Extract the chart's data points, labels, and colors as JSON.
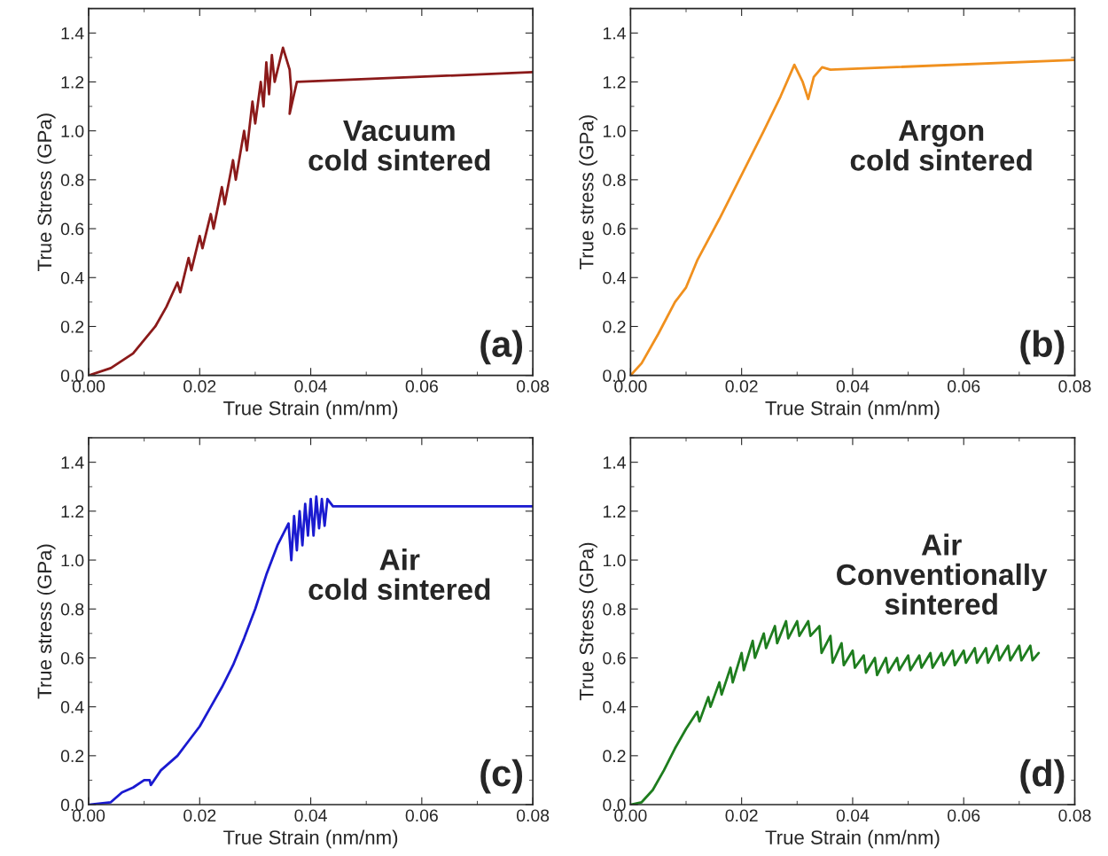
{
  "chart_data": [
    {
      "type": "line",
      "xlabel": "True Strain (nm/nm)",
      "ylabel": "True Stress (GPa)",
      "xlim": [
        0,
        0.08
      ],
      "ylim": [
        0,
        1.5
      ],
      "xticks": [
        {
          "value": 0,
          "label": "0.00"
        },
        {
          "value": 0.02,
          "label": "0.02"
        },
        {
          "value": 0.04,
          "label": "0.04"
        },
        {
          "value": 0.06,
          "label": "0.06"
        },
        {
          "value": 0.08,
          "label": "0.08"
        }
      ],
      "yticks": [
        {
          "value": 0,
          "label": "0.0"
        },
        {
          "value": 0.2,
          "label": "0.2"
        },
        {
          "value": 0.4,
          "label": "0.4"
        },
        {
          "value": 0.6,
          "label": "0.6"
        },
        {
          "value": 0.8,
          "label": "0.8"
        },
        {
          "value": 1.0,
          "label": "1.0"
        },
        {
          "value": 1.2,
          "label": "1.2"
        },
        {
          "value": 1.4,
          "label": "1.4"
        }
      ],
      "annotations": [
        "Vacuum\ncold sintered",
        "(a)"
      ],
      "series": [
        {
          "color": "#8b1a1a",
          "x": [
            0,
            0.004,
            0.008,
            0.012,
            0.014,
            0.016,
            0.0165,
            0.018,
            0.0185,
            0.02,
            0.0205,
            0.022,
            0.0225,
            0.024,
            0.0245,
            0.026,
            0.0265,
            0.028,
            0.0285,
            0.0295,
            0.03,
            0.031,
            0.0315,
            0.032,
            0.0325,
            0.033,
            0.0335,
            0.035,
            0.0362,
            0.0365,
            0.0362,
            0.0375,
            0.08
          ],
          "values": [
            0,
            0.03,
            0.09,
            0.2,
            0.28,
            0.38,
            0.34,
            0.48,
            0.43,
            0.57,
            0.52,
            0.66,
            0.6,
            0.77,
            0.7,
            0.88,
            0.8,
            1.0,
            0.92,
            1.12,
            1.03,
            1.2,
            1.1,
            1.28,
            1.15,
            1.31,
            1.2,
            1.34,
            1.25,
            1.16,
            1.07,
            1.2,
            1.24
          ]
        }
      ]
    },
    {
      "type": "line",
      "xlabel": "True Strain (nm/nm)",
      "ylabel": "True stress (GPa)",
      "xlim": [
        0,
        0.08
      ],
      "ylim": [
        0,
        1.5
      ],
      "xticks": [
        {
          "value": 0,
          "label": "0.00"
        },
        {
          "value": 0.02,
          "label": "0.02"
        },
        {
          "value": 0.04,
          "label": "0.04"
        },
        {
          "value": 0.06,
          "label": "0.06"
        },
        {
          "value": 0.08,
          "label": "0.08"
        }
      ],
      "yticks": [
        {
          "value": 0,
          "label": "0.0"
        },
        {
          "value": 0.2,
          "label": "0.2"
        },
        {
          "value": 0.4,
          "label": "0.4"
        },
        {
          "value": 0.6,
          "label": "0.6"
        },
        {
          "value": 0.8,
          "label": "0.8"
        },
        {
          "value": 1.0,
          "label": "1.0"
        },
        {
          "value": 1.2,
          "label": "1.2"
        },
        {
          "value": 1.4,
          "label": "1.4"
        }
      ],
      "annotations": [
        "Argon\ncold sintered",
        "(b)"
      ],
      "series": [
        {
          "color": "#f0901e",
          "x": [
            0,
            0.002,
            0.005,
            0.008,
            0.01,
            0.012,
            0.016,
            0.02,
            0.024,
            0.027,
            0.0295,
            0.031,
            0.032,
            0.033,
            0.0345,
            0.036,
            0.08
          ],
          "values": [
            0,
            0.05,
            0.17,
            0.3,
            0.36,
            0.47,
            0.64,
            0.82,
            1.0,
            1.14,
            1.27,
            1.2,
            1.13,
            1.22,
            1.26,
            1.25,
            1.29
          ]
        }
      ]
    },
    {
      "type": "line",
      "xlabel": "True Strain (nm/nm)",
      "ylabel": "True stress (GPa)",
      "xlim": [
        0,
        0.08
      ],
      "ylim": [
        0,
        1.5
      ],
      "xticks": [
        {
          "value": 0,
          "label": "0.00"
        },
        {
          "value": 0.02,
          "label": "0.02"
        },
        {
          "value": 0.04,
          "label": "0.04"
        },
        {
          "value": 0.06,
          "label": "0.06"
        },
        {
          "value": 0.08,
          "label": "0.08"
        }
      ],
      "yticks": [
        {
          "value": 0,
          "label": "0.0"
        },
        {
          "value": 0.2,
          "label": "0.2"
        },
        {
          "value": 0.4,
          "label": "0.4"
        },
        {
          "value": 0.6,
          "label": "0.6"
        },
        {
          "value": 0.8,
          "label": "0.8"
        },
        {
          "value": 1.0,
          "label": "1.0"
        },
        {
          "value": 1.2,
          "label": "1.2"
        },
        {
          "value": 1.4,
          "label": "1.4"
        }
      ],
      "annotations": [
        "Air\ncold sintered",
        "(c)"
      ],
      "series": [
        {
          "color": "#1a1ad0",
          "x": [
            0,
            0.004,
            0.006,
            0.008,
            0.01,
            0.011,
            0.0112,
            0.013,
            0.016,
            0.018,
            0.02,
            0.022,
            0.024,
            0.026,
            0.028,
            0.03,
            0.032,
            0.034,
            0.036,
            0.0365,
            0.037,
            0.0375,
            0.038,
            0.0385,
            0.039,
            0.0395,
            0.04,
            0.0405,
            0.041,
            0.0415,
            0.042,
            0.0425,
            0.043,
            0.044,
            0.08
          ],
          "values": [
            0,
            0.01,
            0.05,
            0.07,
            0.1,
            0.1,
            0.08,
            0.14,
            0.2,
            0.26,
            0.32,
            0.4,
            0.48,
            0.57,
            0.68,
            0.8,
            0.94,
            1.06,
            1.15,
            1.0,
            1.18,
            1.04,
            1.2,
            1.06,
            1.23,
            1.1,
            1.25,
            1.1,
            1.26,
            1.13,
            1.25,
            1.14,
            1.25,
            1.22,
            1.22
          ]
        }
      ]
    },
    {
      "type": "line",
      "xlabel": "True Strain (nm/nm)",
      "ylabel": "True Stress (GPa)",
      "xlim": [
        0,
        0.08
      ],
      "ylim": [
        0,
        1.5
      ],
      "xticks": [
        {
          "value": 0,
          "label": "0.00"
        },
        {
          "value": 0.02,
          "label": "0.02"
        },
        {
          "value": 0.04,
          "label": "0.04"
        },
        {
          "value": 0.06,
          "label": "0.06"
        },
        {
          "value": 0.08,
          "label": "0.08"
        }
      ],
      "yticks": [
        {
          "value": 0,
          "label": "0.0"
        },
        {
          "value": 0.2,
          "label": "0.2"
        },
        {
          "value": 0.4,
          "label": "0.4"
        },
        {
          "value": 0.6,
          "label": "0.6"
        },
        {
          "value": 0.8,
          "label": "0.8"
        },
        {
          "value": 1.0,
          "label": "1.0"
        },
        {
          "value": 1.2,
          "label": "1.2"
        },
        {
          "value": 1.4,
          "label": "1.4"
        }
      ],
      "annotations": [
        "Air\nConventionally\nsintered",
        "(d)"
      ],
      "series": [
        {
          "color": "#1e7d1e",
          "x": [
            0,
            0.002,
            0.004,
            0.006,
            0.008,
            0.01,
            0.012,
            0.0124,
            0.014,
            0.0144,
            0.016,
            0.0164,
            0.018,
            0.0184,
            0.02,
            0.0204,
            0.022,
            0.0224,
            0.024,
            0.0244,
            0.026,
            0.0264,
            0.028,
            0.0284,
            0.03,
            0.0304,
            0.032,
            0.0324,
            0.034,
            0.0344,
            0.036,
            0.0364,
            0.038,
            0.0384,
            0.04,
            0.0404,
            0.042,
            0.0424,
            0.044,
            0.0444,
            0.046,
            0.0464,
            0.048,
            0.0484,
            0.05,
            0.0504,
            0.052,
            0.0524,
            0.054,
            0.0544,
            0.056,
            0.0564,
            0.058,
            0.0584,
            0.06,
            0.0604,
            0.062,
            0.0624,
            0.064,
            0.0644,
            0.066,
            0.0664,
            0.068,
            0.0684,
            0.07,
            0.0704,
            0.072,
            0.0724,
            0.0735
          ],
          "values": [
            0,
            0.01,
            0.06,
            0.14,
            0.23,
            0.31,
            0.38,
            0.34,
            0.44,
            0.4,
            0.5,
            0.45,
            0.56,
            0.5,
            0.62,
            0.55,
            0.67,
            0.6,
            0.7,
            0.64,
            0.73,
            0.66,
            0.75,
            0.68,
            0.75,
            0.69,
            0.75,
            0.69,
            0.73,
            0.62,
            0.69,
            0.58,
            0.66,
            0.57,
            0.63,
            0.56,
            0.61,
            0.54,
            0.6,
            0.53,
            0.6,
            0.54,
            0.6,
            0.55,
            0.61,
            0.55,
            0.61,
            0.56,
            0.62,
            0.56,
            0.62,
            0.57,
            0.63,
            0.57,
            0.63,
            0.58,
            0.64,
            0.58,
            0.64,
            0.58,
            0.65,
            0.59,
            0.65,
            0.59,
            0.65,
            0.59,
            0.65,
            0.59,
            0.62
          ]
        }
      ]
    }
  ]
}
